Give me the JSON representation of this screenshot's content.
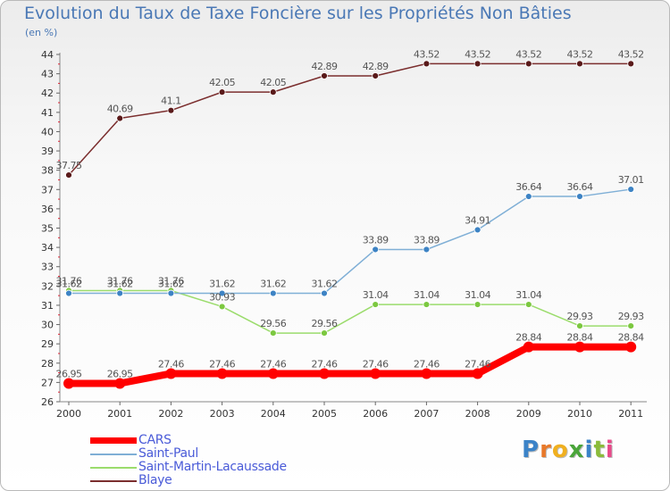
{
  "header": {
    "title": "Evolution du Taux de Taxe Foncière sur les Propriétés Non Bâties",
    "subtitle": "(en %)"
  },
  "logo": {
    "text": "Proxiti",
    "colors": [
      "#3b83c8",
      "#e8792a",
      "#f0b020",
      "#4aa53a",
      "#3b83c8",
      "#8bbb3a",
      "#e84a8a"
    ]
  },
  "chart_data": {
    "type": "line",
    "categories": [
      "2000",
      "2001",
      "2002",
      "2003",
      "2004",
      "2005",
      "2006",
      "2007",
      "2008",
      "2009",
      "2010",
      "2011"
    ],
    "ylim": [
      26,
      44
    ],
    "yticks": [
      26,
      27,
      28,
      29,
      30,
      31,
      32,
      33,
      34,
      35,
      36,
      37,
      38,
      39,
      40,
      41,
      42,
      43,
      44
    ],
    "series": [
      {
        "name": "CARS",
        "color": "#ff0000",
        "marker": "#ff0000",
        "width": 8,
        "values": [
          26.95,
          26.95,
          27.46,
          27.46,
          27.46,
          27.46,
          27.46,
          27.46,
          27.46,
          28.84,
          28.84,
          28.84
        ],
        "labels": [
          "26.95",
          "26.95",
          "27.46",
          "27.46",
          "27.46",
          "27.46",
          "27.46",
          "27.46",
          "27.46",
          "28.84",
          "28.84",
          "28.84"
        ]
      },
      {
        "name": "Saint-Paul",
        "color": "#7fafd6",
        "marker": "#3d83c4",
        "width": 1.5,
        "values": [
          31.62,
          31.62,
          31.62,
          31.62,
          31.62,
          31.62,
          33.89,
          33.89,
          34.91,
          36.64,
          36.64,
          37.01
        ],
        "labels": [
          "31.62",
          "31.62",
          "31.62",
          "31.62",
          "31.62",
          "31.62",
          "33.89",
          "33.89",
          "34.91",
          "36.64",
          "36.64",
          "37.01"
        ]
      },
      {
        "name": "Saint-Martin-Lacaussade",
        "color": "#9bdc6c",
        "marker": "#7cc840",
        "width": 1.5,
        "values": [
          31.76,
          31.76,
          31.76,
          30.93,
          29.56,
          29.56,
          31.04,
          31.04,
          31.04,
          31.04,
          29.93,
          29.93
        ],
        "labels": [
          "31.76",
          "31.76",
          "31.76",
          "30.93",
          "29.56",
          "29.56",
          "31.04",
          "31.04",
          "31.04",
          "31.04",
          "29.93",
          "29.93"
        ]
      },
      {
        "name": "Blaye",
        "color": "#7b2e2e",
        "marker": "#5a1a1a",
        "width": 1.5,
        "values": [
          37.75,
          40.69,
          41.1,
          42.05,
          42.05,
          42.89,
          42.89,
          43.52,
          43.52,
          43.52,
          43.52,
          43.52
        ],
        "labels": [
          "37.75",
          "40.69",
          "41.1",
          "42.05",
          "42.05",
          "42.89",
          "42.89",
          "43.52",
          "43.52",
          "43.52",
          "43.52",
          "43.52"
        ]
      }
    ],
    "grid": false,
    "legend_position": "bottom-left"
  }
}
